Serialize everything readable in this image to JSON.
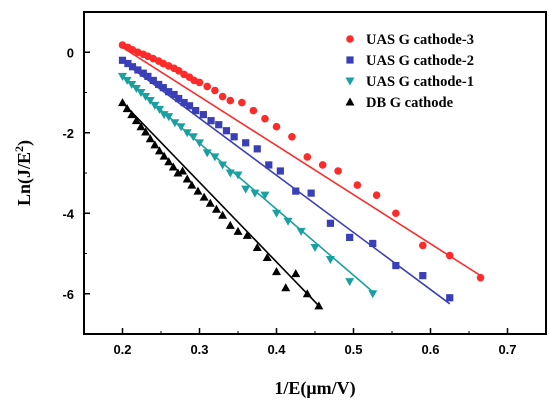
{
  "chart_data": {
    "type": "scatter",
    "xlabel": "1/E(μm/V)",
    "ylabel_main": "Ln(J/E",
    "ylabel_sup": "2",
    "ylabel_close": ")",
    "xlim": [
      0.15,
      0.75
    ],
    "ylim": [
      -7,
      1
    ],
    "xticks": [
      0.2,
      0.3,
      0.4,
      0.5,
      0.6,
      0.7
    ],
    "xtick_labels": [
      "0.2",
      "0.3",
      "0.4",
      "0.5",
      "0.6",
      "0.7"
    ],
    "yticks": [
      0,
      -2,
      -4,
      -6
    ],
    "ytick_labels": [
      "0",
      "-2",
      "-4",
      "-6"
    ],
    "grid": false,
    "legend_position": "top-right",
    "series": [
      {
        "name": "UAS G cathode-3",
        "color": "#ff2a2a",
        "marker": "circle",
        "x": [
          0.2,
          0.207,
          0.213,
          0.22,
          0.227,
          0.233,
          0.24,
          0.247,
          0.253,
          0.26,
          0.267,
          0.273,
          0.28,
          0.287,
          0.293,
          0.3,
          0.31,
          0.32,
          0.33,
          0.34,
          0.355,
          0.37,
          0.385,
          0.4,
          0.42,
          0.44,
          0.46,
          0.48,
          0.505,
          0.53,
          0.555,
          0.59,
          0.625,
          0.665
        ],
        "y": [
          0.18,
          0.12,
          0.06,
          0.0,
          -0.05,
          -0.1,
          -0.16,
          -0.22,
          -0.28,
          -0.34,
          -0.4,
          -0.46,
          -0.55,
          -0.62,
          -0.7,
          -0.75,
          -0.85,
          -0.95,
          -1.1,
          -1.2,
          -1.25,
          -1.45,
          -1.65,
          -1.85,
          -2.1,
          -2.6,
          -2.8,
          -2.95,
          -3.3,
          -3.55,
          -4.0,
          -4.8,
          -5.05,
          -5.6
        ],
        "fit": [
          [
            0.2,
            0.12
          ],
          [
            0.665,
            -5.55
          ]
        ]
      },
      {
        "name": "UAS G cathode-2",
        "color": "#3a3fb8",
        "marker": "square",
        "x": [
          0.2,
          0.207,
          0.213,
          0.22,
          0.227,
          0.233,
          0.24,
          0.247,
          0.253,
          0.26,
          0.267,
          0.273,
          0.28,
          0.287,
          0.295,
          0.305,
          0.315,
          0.325,
          0.335,
          0.345,
          0.36,
          0.375,
          0.39,
          0.405,
          0.425,
          0.445,
          0.47,
          0.495,
          0.525,
          0.555,
          0.59,
          0.625
        ],
        "y": [
          -0.2,
          -0.28,
          -0.36,
          -0.44,
          -0.52,
          -0.6,
          -0.7,
          -0.8,
          -0.88,
          -0.98,
          -1.05,
          -1.15,
          -1.25,
          -1.33,
          -1.45,
          -1.55,
          -1.7,
          -1.8,
          -1.95,
          -2.1,
          -2.25,
          -2.4,
          -2.8,
          -2.95,
          -3.45,
          -3.5,
          -4.25,
          -4.6,
          -4.75,
          -5.3,
          -5.55,
          -6.1
        ],
        "fit": [
          [
            0.2,
            -0.22
          ],
          [
            0.625,
            -6.25
          ]
        ]
      },
      {
        "name": "UAS G cathode-1",
        "color": "#1aa0a0",
        "marker": "triangle-down",
        "x": [
          0.2,
          0.206,
          0.212,
          0.218,
          0.224,
          0.23,
          0.236,
          0.242,
          0.248,
          0.254,
          0.26,
          0.268,
          0.276,
          0.284,
          0.292,
          0.3,
          0.31,
          0.32,
          0.33,
          0.34,
          0.35,
          0.36,
          0.372,
          0.385,
          0.4,
          0.415,
          0.432,
          0.45,
          0.47,
          0.495,
          0.525
        ],
        "y": [
          -0.6,
          -0.7,
          -0.8,
          -0.9,
          -1.0,
          -1.1,
          -1.2,
          -1.32,
          -1.42,
          -1.55,
          -1.6,
          -1.75,
          -1.85,
          -2.0,
          -2.1,
          -2.25,
          -2.5,
          -2.6,
          -2.8,
          -3.0,
          -3.05,
          -3.4,
          -3.5,
          -3.55,
          -4.0,
          -4.2,
          -4.45,
          -4.85,
          -5.15,
          -5.7,
          -6.0
        ],
        "fit": [
          [
            0.2,
            -0.62
          ],
          [
            0.525,
            -5.95
          ]
        ]
      },
      {
        "name": "DB G cathode",
        "color": "#000000",
        "marker": "triangle-up",
        "x": [
          0.2,
          0.206,
          0.212,
          0.218,
          0.224,
          0.23,
          0.236,
          0.242,
          0.248,
          0.254,
          0.26,
          0.266,
          0.272,
          0.278,
          0.284,
          0.29,
          0.298,
          0.306,
          0.314,
          0.322,
          0.33,
          0.34,
          0.35,
          0.362,
          0.375,
          0.388,
          0.4,
          0.412,
          0.425,
          0.44,
          0.455
        ],
        "y": [
          -1.25,
          -1.4,
          -1.55,
          -1.7,
          -1.85,
          -1.98,
          -2.15,
          -2.3,
          -2.45,
          -2.58,
          -2.72,
          -2.85,
          -3.0,
          -2.95,
          -3.15,
          -3.3,
          -3.45,
          -3.6,
          -3.75,
          -3.9,
          -4.05,
          -4.3,
          -4.45,
          -4.55,
          -4.85,
          -5.1,
          -5.45,
          -5.85,
          -5.5,
          -6.0,
          -6.3
        ],
        "fit": [
          [
            0.2,
            -1.25
          ],
          [
            0.455,
            -6.3
          ]
        ]
      }
    ]
  }
}
